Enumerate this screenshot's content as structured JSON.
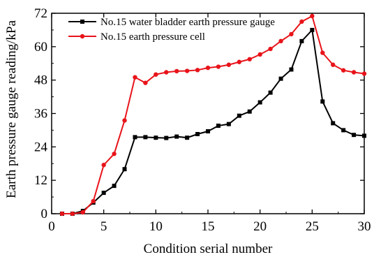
{
  "chart_data": {
    "type": "line",
    "xlabel": "Condition serial number",
    "ylabel": "Earth pressure gauge reading/kPa",
    "xlim": [
      0,
      30
    ],
    "ylim": [
      0,
      72
    ],
    "xticks": [
      0,
      5,
      10,
      15,
      20,
      25,
      30
    ],
    "yticks": [
      0,
      12,
      24,
      36,
      48,
      60,
      72
    ],
    "grid": false,
    "legend_position": "top-center",
    "series": [
      {
        "name": "No.15 water bladder earth pressure gauge",
        "color": "#000000",
        "marker": "square",
        "x": [
          1,
          2,
          3,
          4,
          5,
          6,
          7,
          8,
          9,
          10,
          11,
          12,
          13,
          14,
          15,
          16,
          17,
          18,
          19,
          20,
          21,
          22,
          23,
          24,
          25,
          26,
          27,
          28,
          29,
          30
        ],
        "y": [
          0,
          0,
          1,
          4,
          7.5,
          10,
          16,
          27.5,
          27.5,
          27.3,
          27.2,
          27.7,
          27.3,
          28.6,
          29.6,
          31.6,
          32.2,
          35.2,
          36.7,
          40,
          43.5,
          48.5,
          51.8,
          62,
          66,
          40.3,
          32.5,
          30,
          28.3,
          28
        ]
      },
      {
        "name": "No.15 earth pressure cell",
        "color": "#e8141a",
        "marker": "circle",
        "x": [
          1,
          2,
          3,
          4,
          5,
          6,
          7,
          8,
          9,
          10,
          11,
          12,
          13,
          14,
          15,
          16,
          17,
          18,
          19,
          20,
          21,
          22,
          23,
          24,
          25,
          26,
          27,
          28,
          29,
          30
        ],
        "y": [
          0,
          0,
          0.5,
          4.5,
          17.5,
          21.5,
          33.5,
          49,
          47,
          50,
          50.8,
          51.2,
          51.3,
          51.6,
          52.4,
          52.8,
          53.5,
          54.5,
          55.5,
          57.2,
          59.2,
          62,
          64.5,
          69,
          71,
          57.8,
          53.5,
          51.5,
          50.8,
          50.3
        ]
      }
    ]
  }
}
